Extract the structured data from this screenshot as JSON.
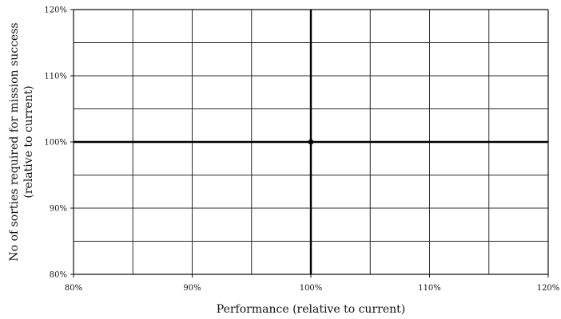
{
  "chart_data": {
    "type": "scatter",
    "title": "",
    "xlabel": "Performance (relative to current)",
    "ylabel_lines": [
      "No of sorties required for mission success",
      "(relative to current)"
    ],
    "xlim": [
      80,
      120
    ],
    "ylim": [
      80,
      120
    ],
    "x_major_ticks": [
      80,
      90,
      100,
      110,
      120
    ],
    "y_major_ticks": [
      80,
      90,
      100,
      110,
      120
    ],
    "x_minor_step": 5,
    "y_minor_step": 5,
    "x_tick_labels": [
      "80%",
      "90%",
      "100%",
      "110%",
      "120%"
    ],
    "y_tick_labels": [
      "80%",
      "90%",
      "100%",
      "110%",
      "120%"
    ],
    "grid": true,
    "reference_lines": {
      "x": 100,
      "y": 100
    },
    "points": [
      {
        "x": 100,
        "y": 100
      }
    ],
    "colors": {
      "grid": "#2a2a2a",
      "axis": "#111111",
      "reference": "#000000",
      "point": "#000000",
      "text": "#111111"
    }
  }
}
